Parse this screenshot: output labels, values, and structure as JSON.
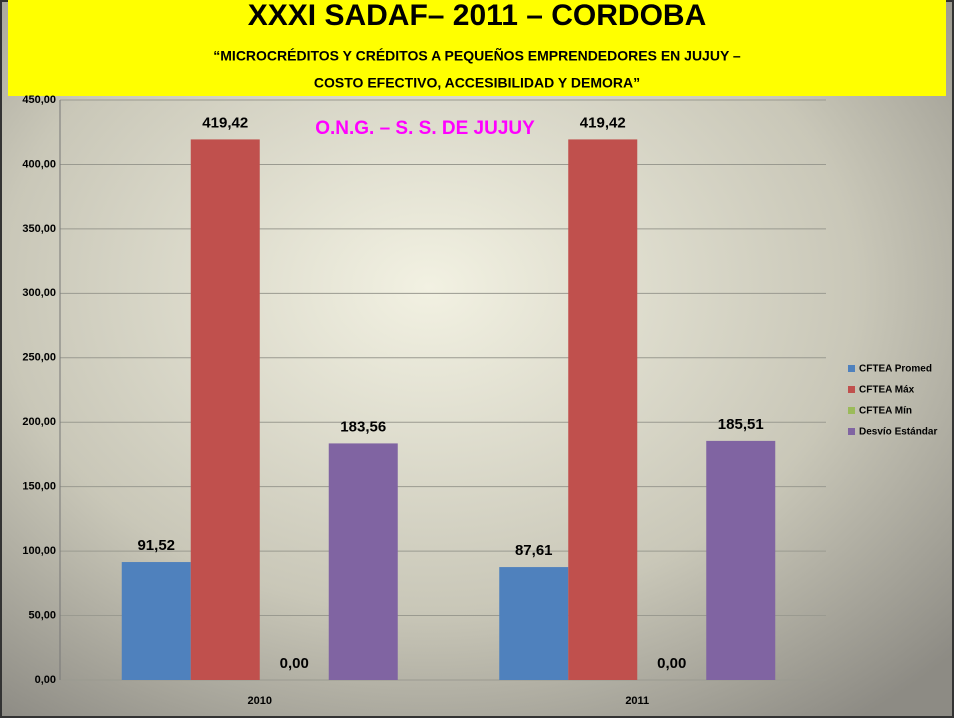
{
  "chart_data": {
    "type": "bar",
    "title": "XXXI SADAF– 2011 – CORDOBA",
    "subtitle": [
      "“MICROCRÉDITOS Y CRÉDITOS A PEQUEÑOS EMPRENDEDORES EN JUJUY –",
      "COSTO EFECTIVO, ACCESIBILIDAD Y DEMORA”"
    ],
    "annotation": "O.N.G. – S. S. DE JUJUY",
    "categories": [
      "2010",
      "2011"
    ],
    "series": [
      {
        "name": "CFTEA Promed",
        "color": "#4f81bd",
        "values": [
          91.52,
          87.61
        ],
        "value_labels": [
          "91,52",
          "87,61"
        ]
      },
      {
        "name": "CFTEA Máx",
        "color": "#c0504d",
        "values": [
          419.42,
          419.42
        ],
        "value_labels": [
          "419,42",
          "419,42"
        ]
      },
      {
        "name": "CFTEA Mín",
        "color": "#9bbb59",
        "values": [
          0,
          0
        ],
        "value_labels": [
          "0,00",
          "0,00"
        ]
      },
      {
        "name": "Desvío Estándar",
        "color": "#8064a2",
        "values": [
          183.56,
          185.51
        ],
        "value_labels": [
          "183,56",
          "185,51"
        ]
      }
    ],
    "ylim": [
      0,
      450
    ],
    "yticks": [
      {
        "value": 0,
        "label": "0,00"
      },
      {
        "value": 50,
        "label": "50,00"
      },
      {
        "value": 100,
        "label": "100,00"
      },
      {
        "value": 150,
        "label": "150,00"
      },
      {
        "value": 200,
        "label": "200,00"
      },
      {
        "value": 250,
        "label": "250,00"
      },
      {
        "value": 300,
        "label": "300,00"
      },
      {
        "value": 350,
        "label": "350,00"
      },
      {
        "value": 400,
        "label": "400,00"
      },
      {
        "value": 450,
        "label": "450,00"
      }
    ],
    "grid": true,
    "legend": "right"
  }
}
